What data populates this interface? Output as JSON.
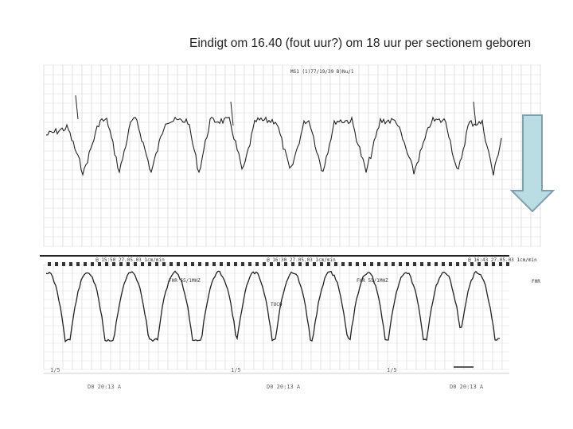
{
  "slide": {
    "caption": "Eindigt om 16.40 (fout uur?) om 18 uur per sectionem geboren"
  },
  "ctg": {
    "header_top": "MS1 (1)77/19/39 B)Nu/1",
    "toco_headers": [
      "@ 15:50 27.05.03 1cm/min",
      "@ 16:30 27.05.03 1cm/min",
      "@ 16:43 27.05.03 1cm/min"
    ],
    "markers": [
      "FHR 55/1MHZ",
      "FHR 55/1MHZ",
      "FHR"
    ],
    "toco_label": "TOCO",
    "bottom_codes": [
      "D0 20:13 A",
      "D0 20:13 A",
      "D0 20:13 A"
    ],
    "zero_labels": [
      "1/5",
      "1/5",
      "1/5"
    ]
  },
  "arrow": {
    "fill": "#b9dde3",
    "stroke": "#7f9fb0"
  }
}
